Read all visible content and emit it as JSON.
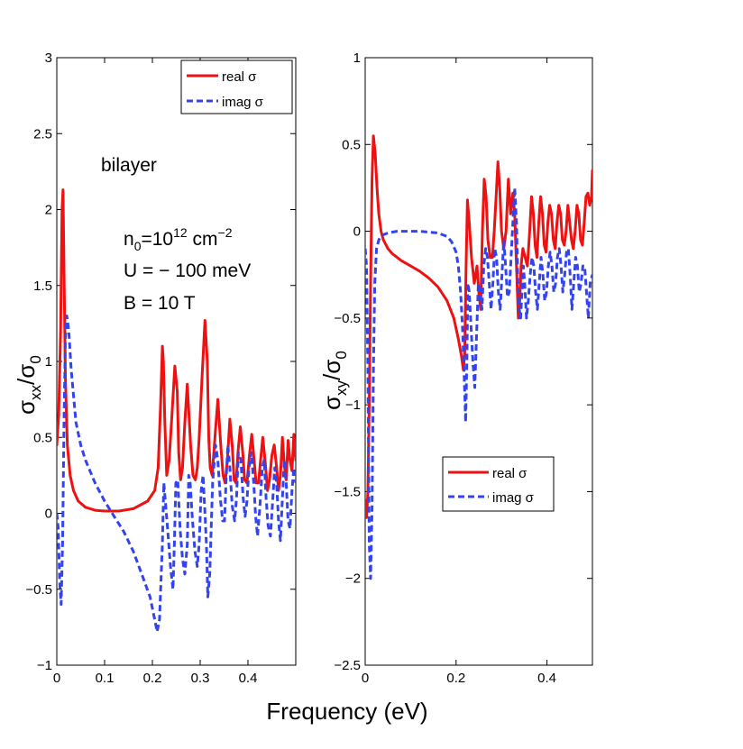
{
  "chart_data": [
    {
      "type": "line",
      "panel": "left",
      "ylabel": "σxx/σ0",
      "ylabel_parts": {
        "sigma": "σ",
        "sub1": "xx",
        "slash": "/",
        "sub2": "0"
      },
      "xlim": [
        0,
        0.5
      ],
      "ylim": [
        -1,
        3
      ],
      "xticks": [
        0,
        0.1,
        0.2,
        0.3,
        0.4
      ],
      "xtick_labels": [
        "0",
        "0.1",
        "0.2",
        "0.3",
        "0.4"
      ],
      "yticks": [
        -1,
        -0.5,
        0,
        0.5,
        1,
        1.5,
        2,
        2.5,
        3
      ],
      "ytick_labels": [
        "−1",
        "−0.5",
        "0",
        "0.5",
        "1",
        "1.5",
        "2",
        "2.5",
        "3"
      ],
      "legend_position": "top-right",
      "annotations": {
        "system": "bilayer",
        "density": {
          "base": "n",
          "sub": "0",
          "mid": "=10",
          "sup1": "12",
          "unit": " cm",
          "sup2": "−2"
        },
        "gap": "U = − 100 meV",
        "field": "B = 10 T"
      },
      "series": [
        {
          "name": "real σ",
          "color": "#ee1111",
          "style": "solid",
          "x": [
            0,
            0.004,
            0.008,
            0.011,
            0.013,
            0.015,
            0.018,
            0.022,
            0.028,
            0.035,
            0.045,
            0.06,
            0.08,
            0.1,
            0.13,
            0.16,
            0.19,
            0.205,
            0.212,
            0.217,
            0.221,
            0.223,
            0.226,
            0.23,
            0.235,
            0.24,
            0.247,
            0.252,
            0.255,
            0.259,
            0.263,
            0.268,
            0.273,
            0.28,
            0.285,
            0.29,
            0.294,
            0.298,
            0.304,
            0.31,
            0.315,
            0.318,
            0.321,
            0.325,
            0.332,
            0.337,
            0.343,
            0.348,
            0.352,
            0.357,
            0.362,
            0.367,
            0.371,
            0.375,
            0.379,
            0.384,
            0.389,
            0.393,
            0.398,
            0.403,
            0.408,
            0.412,
            0.417,
            0.422,
            0.427,
            0.431,
            0.436,
            0.441,
            0.445,
            0.45,
            0.455,
            0.46,
            0.464,
            0.468,
            0.472,
            0.476,
            0.48,
            0.484,
            0.488,
            0.492,
            0.496,
            0.5
          ],
          "values": [
            0.45,
            0.65,
            1.2,
            2.0,
            2.13,
            1.6,
            0.9,
            0.45,
            0.25,
            0.15,
            0.08,
            0.04,
            0.02,
            0.015,
            0.015,
            0.03,
            0.08,
            0.15,
            0.3,
            0.7,
            1.1,
            1.0,
            0.6,
            0.25,
            0.35,
            0.6,
            0.97,
            0.8,
            0.4,
            0.22,
            0.3,
            0.6,
            0.85,
            0.45,
            0.25,
            0.22,
            0.3,
            0.5,
            0.9,
            1.27,
            1.0,
            0.5,
            0.3,
            0.25,
            0.55,
            0.75,
            0.45,
            0.25,
            0.2,
            0.35,
            0.62,
            0.45,
            0.22,
            0.2,
            0.4,
            0.57,
            0.4,
            0.22,
            0.2,
            0.38,
            0.52,
            0.38,
            0.2,
            0.2,
            0.37,
            0.5,
            0.34,
            0.15,
            0.22,
            0.38,
            0.45,
            0.3,
            0.15,
            0.25,
            0.5,
            0.32,
            0.22,
            0.48,
            0.35,
            0.28,
            0.52,
            0.35
          ]
        },
        {
          "name": "imag σ",
          "color": "#3344ee",
          "style": "dashed",
          "x": [
            0,
            0.003,
            0.006,
            0.009,
            0.012,
            0.015,
            0.018,
            0.021,
            0.025,
            0.03,
            0.04,
            0.05,
            0.06,
            0.08,
            0.1,
            0.12,
            0.14,
            0.16,
            0.18,
            0.195,
            0.205,
            0.21,
            0.215,
            0.218,
            0.221,
            0.224,
            0.228,
            0.233,
            0.238,
            0.243,
            0.246,
            0.249,
            0.253,
            0.258,
            0.263,
            0.268,
            0.273,
            0.276,
            0.279,
            0.284,
            0.289,
            0.294,
            0.298,
            0.302,
            0.306,
            0.31,
            0.313,
            0.316,
            0.32,
            0.326,
            0.332,
            0.337,
            0.342,
            0.347,
            0.351,
            0.354,
            0.358,
            0.362,
            0.367,
            0.372,
            0.376,
            0.38,
            0.385,
            0.39,
            0.394,
            0.398,
            0.402,
            0.407,
            0.412,
            0.416,
            0.42,
            0.425,
            0.43,
            0.434,
            0.438,
            0.442,
            0.447,
            0.452,
            0.456,
            0.46,
            0.464,
            0.468,
            0.472,
            0.476,
            0.48,
            0.484,
            0.488,
            0.492,
            0.496,
            0.5
          ],
          "values": [
            0.0,
            -0.1,
            -0.45,
            -0.6,
            -0.2,
            0.6,
            1.15,
            1.3,
            1.2,
            0.95,
            0.6,
            0.45,
            0.35,
            0.2,
            0.08,
            -0.02,
            -0.12,
            -0.25,
            -0.42,
            -0.55,
            -0.7,
            -0.78,
            -0.7,
            -0.45,
            -0.2,
            0.2,
            0.05,
            -0.15,
            -0.35,
            -0.5,
            -0.2,
            0.2,
            0.22,
            -0.1,
            -0.3,
            -0.4,
            -0.2,
            0.25,
            0.2,
            -0.05,
            -0.25,
            -0.35,
            -0.2,
            0.15,
            0.25,
            0.0,
            -0.2,
            -0.55,
            -0.4,
            0.2,
            0.45,
            0.35,
            0.1,
            -0.05,
            -0.05,
            0.2,
            0.45,
            0.3,
            0.05,
            -0.05,
            0.1,
            0.4,
            0.35,
            0.1,
            -0.02,
            0.08,
            0.3,
            0.4,
            0.2,
            -0.02,
            -0.15,
            0.05,
            0.3,
            0.35,
            0.1,
            -0.08,
            -0.15,
            0.1,
            0.3,
            0.2,
            -0.05,
            -0.18,
            0.1,
            0.35,
            0.2,
            -0.05,
            -0.1,
            0.15,
            0.3,
            0.2
          ]
        }
      ]
    },
    {
      "type": "line",
      "panel": "right",
      "ylabel": "σxy/σ0",
      "ylabel_parts": {
        "sigma": "σ",
        "sub1": "xy",
        "slash": "/",
        "sub2": "0"
      },
      "xlim": [
        0,
        0.5
      ],
      "ylim": [
        -2.5,
        1
      ],
      "xticks": [
        0,
        0.2,
        0.4
      ],
      "xtick_labels": [
        "0",
        "0.2",
        "0.4"
      ],
      "yticks": [
        -2.5,
        -2,
        -1.5,
        -1,
        -0.5,
        0,
        0.5,
        1
      ],
      "ytick_labels": [
        "−2.5",
        "−2",
        "−1.5",
        "−1",
        "−0.5",
        "0",
        "0.5",
        "1"
      ],
      "legend_position": "middle-right",
      "series": [
        {
          "name": "real σ",
          "color": "#ee1111",
          "style": "solid",
          "x": [
            0,
            0.003,
            0.006,
            0.009,
            0.012,
            0.015,
            0.018,
            0.022,
            0.026,
            0.03,
            0.035,
            0.04,
            0.05,
            0.06,
            0.08,
            0.1,
            0.12,
            0.14,
            0.16,
            0.18,
            0.195,
            0.205,
            0.212,
            0.216,
            0.219,
            0.222,
            0.225,
            0.229,
            0.234,
            0.24,
            0.246,
            0.25,
            0.254,
            0.258,
            0.262,
            0.266,
            0.27,
            0.275,
            0.28,
            0.284,
            0.288,
            0.292,
            0.296,
            0.3,
            0.305,
            0.31,
            0.315,
            0.32,
            0.325,
            0.329,
            0.333,
            0.337,
            0.34,
            0.343,
            0.347,
            0.352,
            0.357,
            0.362,
            0.366,
            0.37,
            0.374,
            0.378,
            0.382,
            0.386,
            0.39,
            0.394,
            0.398,
            0.402,
            0.406,
            0.41,
            0.414,
            0.418,
            0.422,
            0.426,
            0.43,
            0.434,
            0.438,
            0.442,
            0.446,
            0.45,
            0.454,
            0.458,
            0.462,
            0.466,
            0.47,
            0.474,
            0.478,
            0.482,
            0.486,
            0.49,
            0.494,
            0.498,
            0.5
          ],
          "values": [
            -1.55,
            -1.65,
            -1.5,
            -1.0,
            -0.3,
            0.3,
            0.55,
            0.45,
            0.25,
            0.1,
            0.0,
            -0.05,
            -0.1,
            -0.13,
            -0.17,
            -0.2,
            -0.23,
            -0.27,
            -0.32,
            -0.4,
            -0.5,
            -0.62,
            -0.72,
            -0.8,
            -0.7,
            -0.2,
            0.18,
            0.05,
            -0.15,
            -0.3,
            -0.2,
            -0.35,
            -0.45,
            0.0,
            0.3,
            0.2,
            -0.05,
            -0.15,
            -0.15,
            0.0,
            0.2,
            0.4,
            0.25,
            0.0,
            -0.1,
            0.0,
            0.3,
            0.1,
            0.22,
            0.1,
            -0.2,
            -0.5,
            -0.4,
            -0.2,
            -0.1,
            -0.15,
            -0.2,
            0.0,
            0.2,
            0.1,
            -0.08,
            -0.15,
            0.05,
            0.2,
            0.1,
            -0.08,
            -0.12,
            0.05,
            0.15,
            0.1,
            -0.05,
            -0.1,
            0.05,
            0.15,
            0.1,
            -0.05,
            -0.08,
            0.0,
            0.15,
            0.05,
            -0.05,
            -0.1,
            0.0,
            0.15,
            0.1,
            -0.05,
            -0.08,
            0.05,
            0.2,
            0.22,
            0.15,
            0.2,
            0.35
          ]
        },
        {
          "name": "imag σ",
          "color": "#3344ee",
          "style": "dashed",
          "x": [
            0,
            0.003,
            0.006,
            0.009,
            0.012,
            0.015,
            0.018,
            0.021,
            0.025,
            0.03,
            0.035,
            0.04,
            0.05,
            0.06,
            0.07,
            0.08,
            0.1,
            0.12,
            0.14,
            0.16,
            0.18,
            0.19,
            0.2,
            0.205,
            0.21,
            0.214,
            0.218,
            0.221,
            0.224,
            0.226,
            0.229,
            0.233,
            0.237,
            0.241,
            0.245,
            0.249,
            0.253,
            0.257,
            0.261,
            0.265,
            0.269,
            0.273,
            0.277,
            0.281,
            0.285,
            0.289,
            0.293,
            0.297,
            0.301,
            0.305,
            0.309,
            0.313,
            0.317,
            0.321,
            0.325,
            0.329,
            0.333,
            0.336,
            0.339,
            0.342,
            0.345,
            0.348,
            0.351,
            0.355,
            0.359,
            0.363,
            0.367,
            0.371,
            0.375,
            0.379,
            0.383,
            0.387,
            0.391,
            0.395,
            0.399,
            0.403,
            0.407,
            0.411,
            0.415,
            0.419,
            0.423,
            0.427,
            0.431,
            0.435,
            0.439,
            0.443,
            0.447,
            0.451,
            0.455,
            0.459,
            0.463,
            0.467,
            0.471,
            0.475,
            0.479,
            0.483,
            0.487,
            0.491,
            0.495,
            0.5
          ],
          "values": [
            -0.1,
            -0.2,
            -0.8,
            -1.8,
            -2.0,
            -1.6,
            -0.8,
            -0.3,
            -0.1,
            -0.05,
            -0.03,
            -0.02,
            -0.01,
            -0.005,
            0.0,
            0.0,
            0.0,
            0.0,
            -0.005,
            -0.01,
            -0.03,
            -0.06,
            -0.12,
            -0.2,
            -0.35,
            -0.55,
            -0.85,
            -1.1,
            -0.7,
            -0.3,
            -0.35,
            -0.55,
            -0.75,
            -0.9,
            -0.6,
            -0.3,
            -0.35,
            -0.45,
            -0.2,
            -0.1,
            -0.15,
            -0.3,
            -0.45,
            -0.3,
            -0.1,
            -0.15,
            -0.35,
            -0.45,
            -0.25,
            -0.05,
            -0.2,
            -0.38,
            -0.35,
            -0.15,
            0.05,
            0.25,
            0.05,
            -0.3,
            -0.45,
            -0.5,
            -0.35,
            -0.2,
            -0.3,
            -0.5,
            -0.4,
            -0.25,
            -0.15,
            -0.2,
            -0.35,
            -0.45,
            -0.3,
            -0.15,
            -0.25,
            -0.4,
            -0.35,
            -0.2,
            -0.12,
            -0.2,
            -0.35,
            -0.3,
            -0.15,
            -0.1,
            -0.2,
            -0.35,
            -0.25,
            -0.12,
            -0.1,
            -0.25,
            -0.45,
            -0.3,
            -0.15,
            -0.2,
            -0.35,
            -0.3,
            -0.2,
            -0.2,
            -0.35,
            -0.5,
            -0.3,
            -0.25
          ]
        }
      ]
    }
  ],
  "xlabel": "Frequency  (eV)",
  "legend": {
    "real": "real σ",
    "imag": "imag σ"
  }
}
